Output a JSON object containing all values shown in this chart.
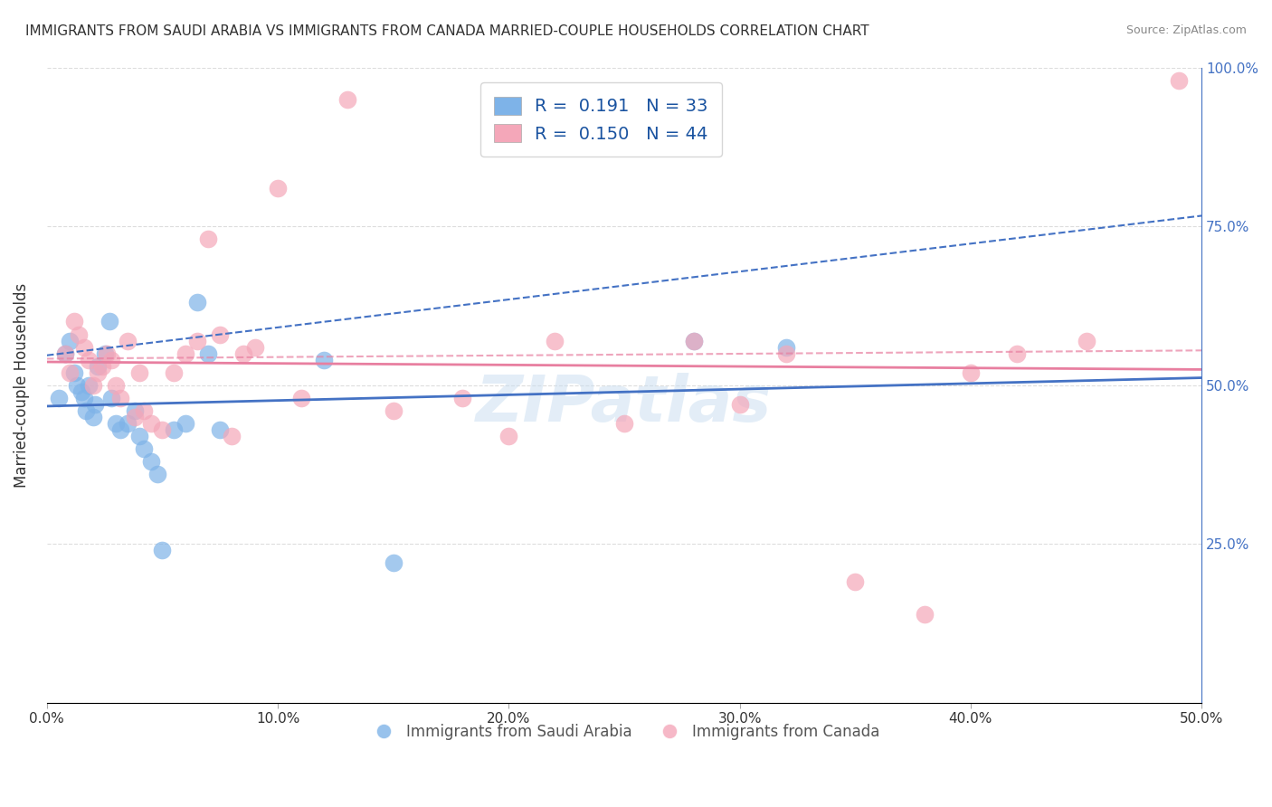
{
  "title": "IMMIGRANTS FROM SAUDI ARABIA VS IMMIGRANTS FROM CANADA MARRIED-COUPLE HOUSEHOLDS CORRELATION CHART",
  "source": "Source: ZipAtlas.com",
  "xlabel_blue": "Immigrants from Saudi Arabia",
  "xlabel_pink": "Immigrants from Canada",
  "ylabel": "Married-couple Households",
  "xlim": [
    0,
    0.5
  ],
  "ylim": [
    0,
    1.0
  ],
  "xticks": [
    0.0,
    0.1,
    0.2,
    0.3,
    0.4,
    0.5
  ],
  "xtick_labels": [
    "0.0%",
    "10.0%",
    "20.0%",
    "30.0%",
    "40.0%",
    "50.0%"
  ],
  "yticks": [
    0.0,
    0.25,
    0.5,
    0.75,
    1.0
  ],
  "ytick_labels": [
    "",
    "25.0%",
    "50.0%",
    "75.0%",
    "100.0%"
  ],
  "color_blue": "#7EB3E8",
  "color_pink": "#F4A7B9",
  "legend_r_blue": "0.191",
  "legend_n_blue": "33",
  "legend_r_pink": "0.150",
  "legend_n_pink": "44",
  "blue_x": [
    0.005,
    0.008,
    0.01,
    0.012,
    0.013,
    0.015,
    0.016,
    0.017,
    0.018,
    0.02,
    0.021,
    0.022,
    0.025,
    0.027,
    0.028,
    0.03,
    0.032,
    0.035,
    0.038,
    0.04,
    0.042,
    0.045,
    0.048,
    0.05,
    0.055,
    0.06,
    0.065,
    0.07,
    0.075,
    0.12,
    0.15,
    0.28,
    0.32
  ],
  "blue_y": [
    0.48,
    0.55,
    0.57,
    0.52,
    0.5,
    0.49,
    0.48,
    0.46,
    0.5,
    0.45,
    0.47,
    0.53,
    0.55,
    0.6,
    0.48,
    0.44,
    0.43,
    0.44,
    0.46,
    0.42,
    0.4,
    0.38,
    0.36,
    0.24,
    0.43,
    0.44,
    0.63,
    0.55,
    0.43,
    0.54,
    0.22,
    0.57,
    0.56
  ],
  "pink_x": [
    0.008,
    0.01,
    0.012,
    0.014,
    0.016,
    0.018,
    0.02,
    0.022,
    0.024,
    0.026,
    0.028,
    0.03,
    0.032,
    0.035,
    0.038,
    0.04,
    0.042,
    0.045,
    0.05,
    0.055,
    0.06,
    0.065,
    0.07,
    0.075,
    0.08,
    0.085,
    0.09,
    0.1,
    0.11,
    0.13,
    0.15,
    0.18,
    0.2,
    0.22,
    0.25,
    0.28,
    0.3,
    0.32,
    0.35,
    0.38,
    0.4,
    0.42,
    0.45,
    0.49
  ],
  "pink_y": [
    0.55,
    0.52,
    0.6,
    0.58,
    0.56,
    0.54,
    0.5,
    0.52,
    0.53,
    0.55,
    0.54,
    0.5,
    0.48,
    0.57,
    0.45,
    0.52,
    0.46,
    0.44,
    0.43,
    0.52,
    0.55,
    0.57,
    0.73,
    0.58,
    0.42,
    0.55,
    0.56,
    0.81,
    0.48,
    0.95,
    0.46,
    0.48,
    0.42,
    0.57,
    0.44,
    0.57,
    0.47,
    0.55,
    0.19,
    0.14,
    0.52,
    0.55,
    0.57,
    0.98
  ],
  "watermark": "ZIPatlas",
  "background_color": "#ffffff",
  "grid_color": "#dddddd"
}
